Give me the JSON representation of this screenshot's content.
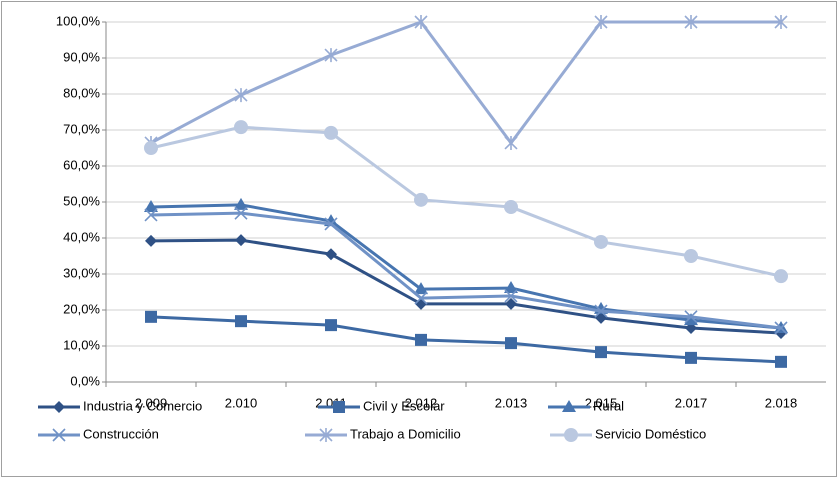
{
  "chart_data": {
    "type": "line",
    "categories": [
      "2.009",
      "2.010",
      "2.011",
      "2.012",
      "2.013",
      "2.015",
      "2.017",
      "2.018"
    ],
    "series": [
      {
        "name": "Industria y Comercio",
        "color": "#2f5185",
        "marker": "diamond",
        "values": [
          39.2,
          39.4,
          35.5,
          21.7,
          21.7,
          17.8,
          15.0,
          13.6
        ]
      },
      {
        "name": "Civil y Escolar",
        "color": "#3d69a3",
        "marker": "square",
        "values": [
          18.1,
          16.9,
          15.8,
          11.7,
          10.8,
          8.3,
          6.7,
          5.6
        ]
      },
      {
        "name": "Rural",
        "color": "#4775b0",
        "marker": "triangle",
        "values": [
          48.6,
          49.2,
          44.7,
          25.8,
          26.1,
          20.3,
          17.2,
          15.0
        ]
      },
      {
        "name": "Construcción",
        "color": "#7092c6",
        "marker": "x",
        "values": [
          46.4,
          46.9,
          43.9,
          23.3,
          23.9,
          19.7,
          18.1,
          15.0
        ]
      },
      {
        "name": "Trabajo a Domicilio",
        "color": "#97abd4",
        "marker": "star",
        "values": [
          66.4,
          79.7,
          90.8,
          100,
          66.4,
          100,
          100,
          100
        ]
      },
      {
        "name": "Servicio Doméstico",
        "color": "#bac8e0",
        "marker": "circle",
        "values": [
          65.0,
          70.8,
          69.2,
          50.6,
          48.6,
          38.9,
          35.0,
          29.4
        ]
      }
    ],
    "ylim": [
      0,
      100
    ],
    "yticks": [
      {
        "value": 0,
        "label": "0,0%"
      },
      {
        "value": 10,
        "label": "10,0%"
      },
      {
        "value": 20,
        "label": "20,0%"
      },
      {
        "value": 30,
        "label": "30,0%"
      },
      {
        "value": 40,
        "label": "40,0%"
      },
      {
        "value": 50,
        "label": "50,0%"
      },
      {
        "value": 60,
        "label": "60,0%"
      },
      {
        "value": 70,
        "label": "70,0%"
      },
      {
        "value": 80,
        "label": "80,0%"
      },
      {
        "value": 90,
        "label": "90,0%"
      },
      {
        "value": 100,
        "label": "100,0%"
      }
    ],
    "grid": true,
    "legend": "bottom"
  }
}
